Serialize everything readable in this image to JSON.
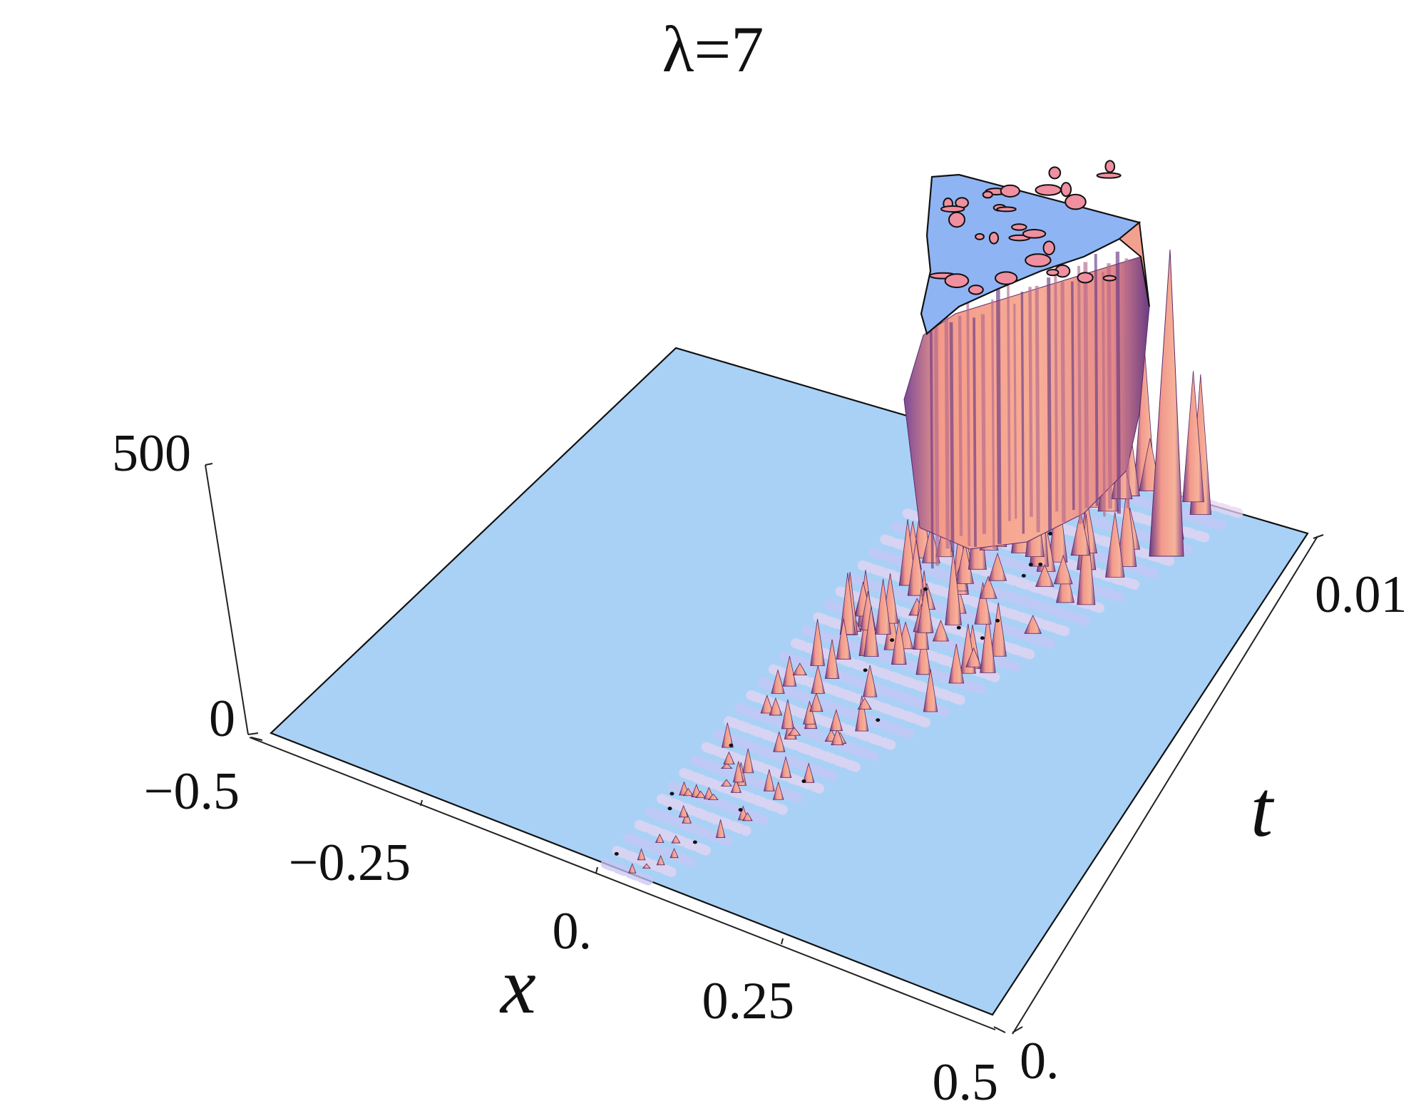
{
  "chart_data": {
    "type": "surface3d",
    "title": "λ=7",
    "xlabel": "x",
    "ylabel": "t",
    "zlabel": "",
    "x_range": [
      -0.5,
      0.5
    ],
    "t_range": [
      0,
      0.01
    ],
    "z_range": [
      0,
      500
    ],
    "x_ticks": [
      "−0.5",
      "−0.25",
      "0.",
      "0.25",
      "0.5"
    ],
    "t_ticks": [
      "0.",
      "0.01"
    ],
    "z_ticks": [
      "0",
      "500"
    ],
    "surface": {
      "description_of_feature": "wave front starting near x=0 at t=0, spreading toward positive x as t increases, amplitude growing and clipped at z=500 near t=0.01",
      "clip_value": 500,
      "front_start": {
        "x": 0.0,
        "t": 0.0,
        "z": 30
      },
      "front_end": {
        "x": 0.2,
        "t": 0.01,
        "z": 500
      }
    },
    "colors": {
      "plane": "#a9d1f6",
      "peak_body": "#f4a08a",
      "peak_shadow": "#6a3a86",
      "clip_cap": "#8fb4f4",
      "edge": "#111111"
    }
  }
}
